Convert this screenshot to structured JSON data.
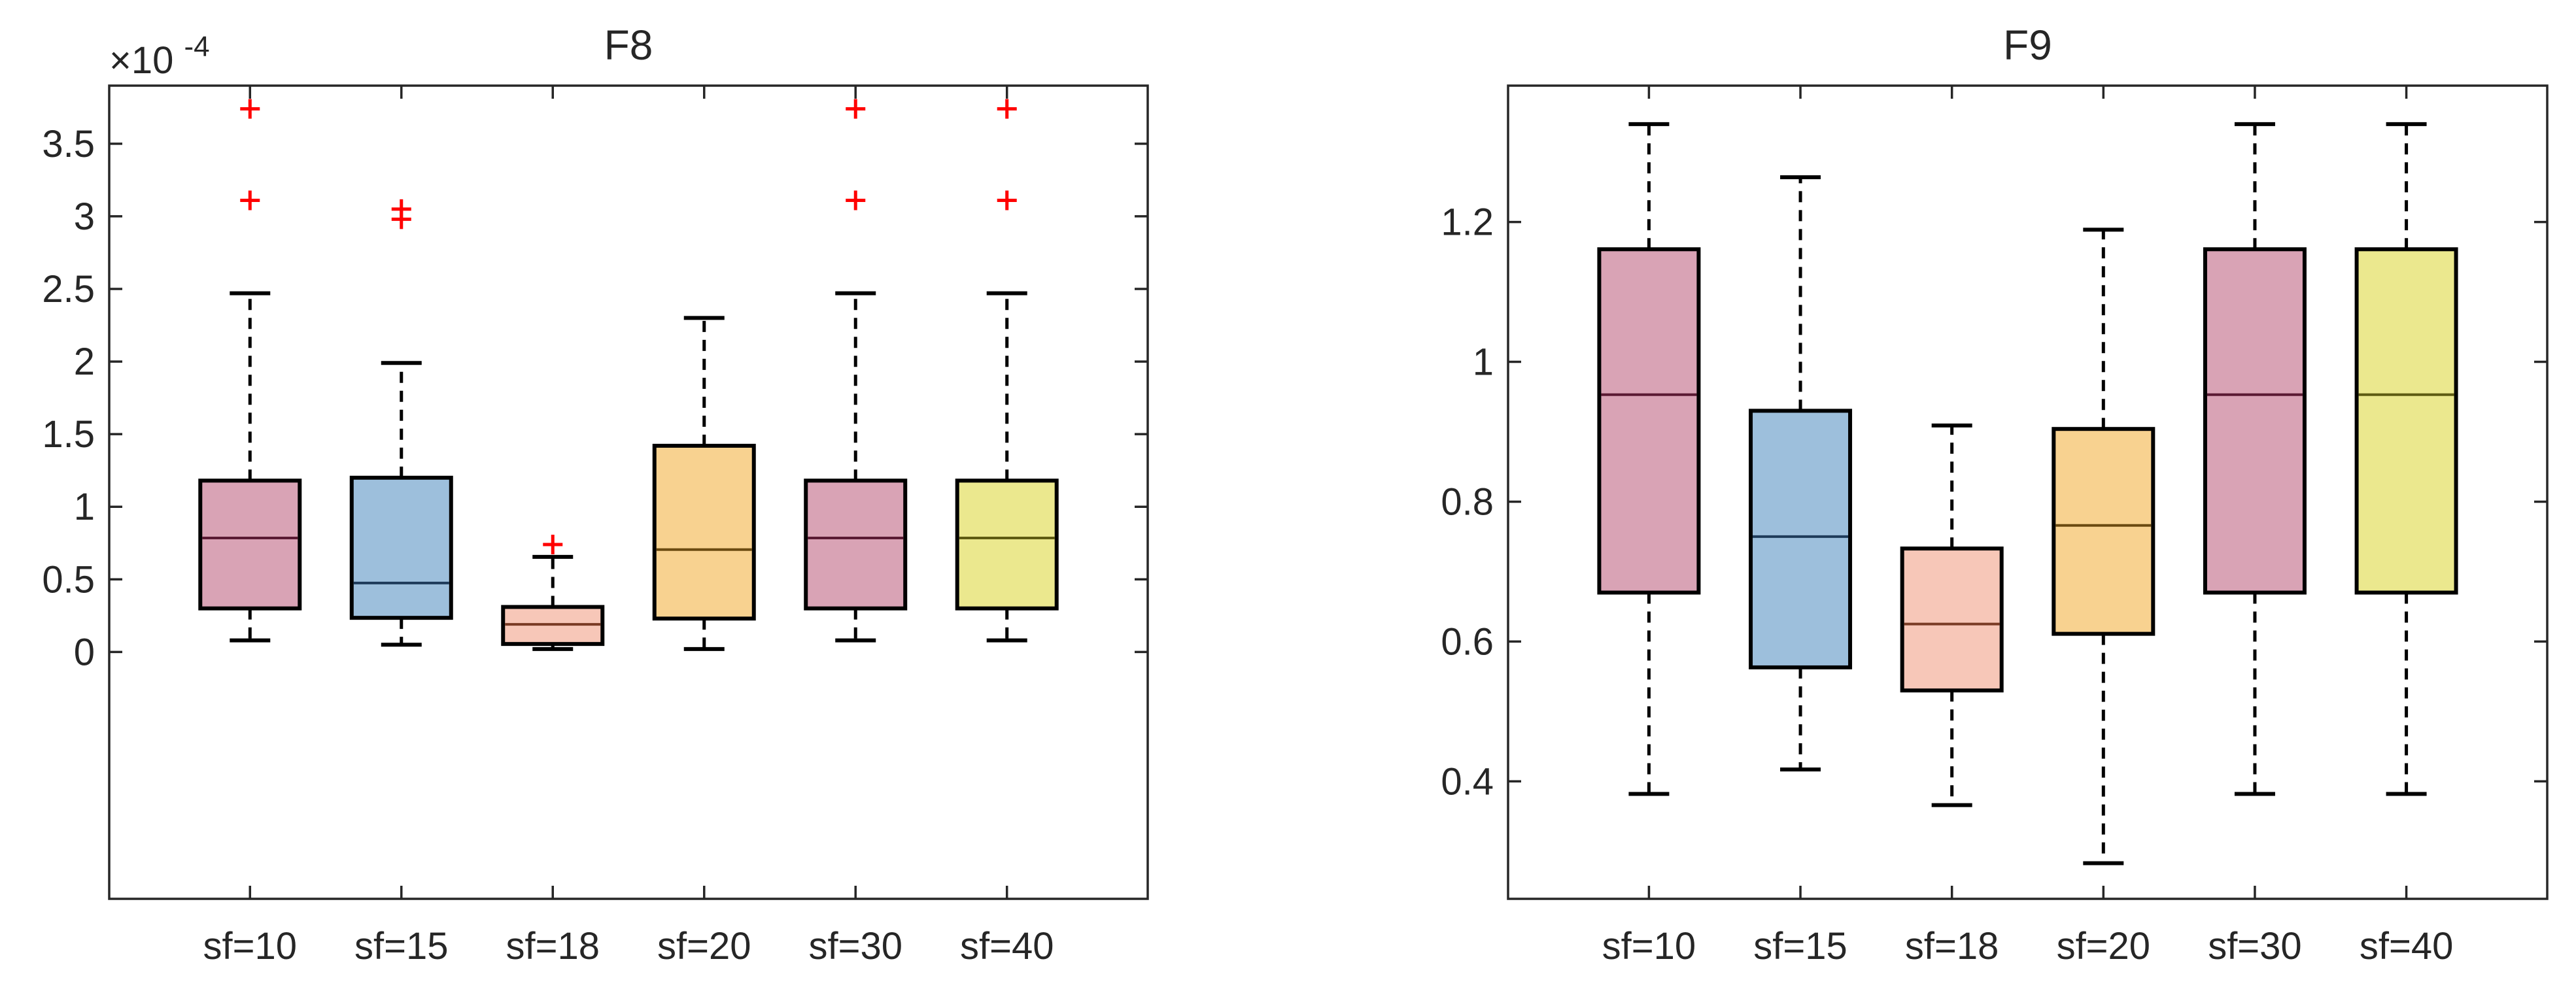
{
  "chart_data": [
    {
      "type": "boxplot",
      "title": "F8",
      "categories": [
        "sf=10",
        "sf=15",
        "sf=18",
        "sf=20",
        "sf=30",
        "sf=40"
      ],
      "ylim": [
        -0.00017,
        0.00039
      ],
      "yticks": [
        0,
        5e-05,
        0.0001,
        0.00015,
        0.0002,
        0.00025,
        0.0003,
        0.00035
      ],
      "ytick_labels": [
        "0",
        "0.5",
        "1",
        "1.5",
        "2",
        "2.5",
        "3",
        "3.5"
      ],
      "y_exponent_label": {
        "base": "×10",
        "exponent": "-4"
      },
      "box_colors": [
        "#d9a3b5",
        "#9dbfdc",
        "#f7c7b8",
        "#f8d290",
        "#d9a3b5",
        "#ebe88e"
      ],
      "median_colors": [
        "#5a1a33",
        "#1f3b5a",
        "#7a3b25",
        "#6b4a10",
        "#5a1a33",
        "#5e5b12"
      ],
      "outlier_color": "#ff0000",
      "boxes": [
        {
          "label": "sf=10",
          "whisker_low": 8e-06,
          "q1": 3e-05,
          "median": 7.85e-05,
          "q3": 0.000118,
          "whisker_high": 0.000247,
          "outliers": [
            0.000311,
            0.000374
          ]
        },
        {
          "label": "sf=15",
          "whisker_low": 5e-06,
          "q1": 2.35e-05,
          "median": 4.75e-05,
          "q3": 0.00012,
          "whisker_high": 0.000199,
          "outliers": [
            0.000298,
            0.000305
          ]
        },
        {
          "label": "sf=18",
          "whisker_low": 2e-06,
          "q1": 5.5e-06,
          "median": 1.9e-05,
          "q3": 3.1e-05,
          "whisker_high": 6.55e-05,
          "outliers": [
            7.4e-05
          ]
        },
        {
          "label": "sf=20",
          "whisker_low": 2e-06,
          "q1": 2.3e-05,
          "median": 7.05e-05,
          "q3": 0.000142,
          "whisker_high": 0.00023,
          "outliers": []
        },
        {
          "label": "sf=30",
          "whisker_low": 8e-06,
          "q1": 3e-05,
          "median": 7.85e-05,
          "q3": 0.000118,
          "whisker_high": 0.000247,
          "outliers": [
            0.000311,
            0.000374
          ]
        },
        {
          "label": "sf=40",
          "whisker_low": 8e-06,
          "q1": 3e-05,
          "median": 7.85e-05,
          "q3": 0.000118,
          "whisker_high": 0.000247,
          "outliers": [
            0.000311,
            0.000374
          ]
        }
      ]
    },
    {
      "type": "boxplot",
      "title": "F9",
      "categories": [
        "sf=10",
        "sf=15",
        "sf=18",
        "sf=20",
        "sf=30",
        "sf=40"
      ],
      "ylim": [
        0.232,
        1.395
      ],
      "yticks": [
        0.4,
        0.6,
        0.8,
        1.0,
        1.2
      ],
      "ytick_labels": [
        "0.4",
        "0.6",
        "0.8",
        "1",
        "1.2"
      ],
      "box_colors": [
        "#d9a3b5",
        "#9dbfdc",
        "#f7c7b8",
        "#f8d290",
        "#d9a3b5",
        "#ebe88e"
      ],
      "median_colors": [
        "#5a1a33",
        "#1f3b5a",
        "#7a3b25",
        "#6b4a10",
        "#5a1a33",
        "#5e5b12"
      ],
      "outlier_color": "#ff0000",
      "boxes": [
        {
          "label": "sf=10",
          "whisker_low": 0.382,
          "q1": 0.67,
          "median": 0.953,
          "q3": 1.161,
          "whisker_high": 1.34,
          "outliers": []
        },
        {
          "label": "sf=15",
          "whisker_low": 0.417,
          "q1": 0.563,
          "median": 0.75,
          "q3": 0.93,
          "whisker_high": 1.264,
          "outliers": []
        },
        {
          "label": "sf=18",
          "whisker_low": 0.366,
          "q1": 0.53,
          "median": 0.625,
          "q3": 0.733,
          "whisker_high": 0.909,
          "outliers": []
        },
        {
          "label": "sf=20",
          "whisker_low": 0.283,
          "q1": 0.611,
          "median": 0.766,
          "q3": 0.904,
          "whisker_high": 1.189,
          "outliers": []
        },
        {
          "label": "sf=30",
          "whisker_low": 0.382,
          "q1": 0.67,
          "median": 0.953,
          "q3": 1.161,
          "whisker_high": 1.34,
          "outliers": []
        },
        {
          "label": "sf=40",
          "whisker_low": 0.382,
          "q1": 0.67,
          "median": 0.953,
          "q3": 1.161,
          "whisker_high": 1.34,
          "outliers": []
        }
      ]
    }
  ]
}
